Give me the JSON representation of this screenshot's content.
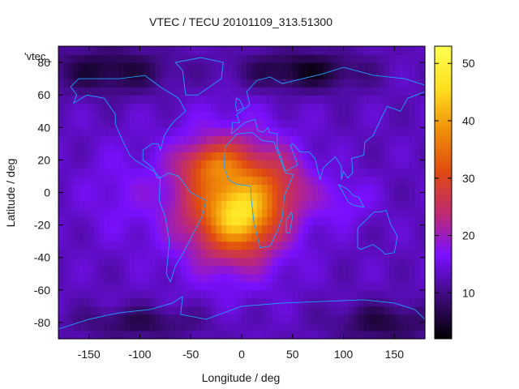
{
  "chart_data": {
    "type": "heatmap",
    "title": "VTEC / TECU 20101109_313.51300",
    "xlabel": "Longitude / deg",
    "ylabel": "Latitude / deg",
    "key_label": "'vtec_",
    "xlim": [
      -180,
      180
    ],
    "ylim": [
      -90,
      90
    ],
    "xticks": [
      -150,
      -100,
      -50,
      0,
      50,
      100,
      150
    ],
    "yticks": [
      -80,
      -60,
      -40,
      -20,
      0,
      20,
      40,
      60,
      80
    ],
    "colorbar": {
      "min": 2,
      "max": 53,
      "ticks": [
        10,
        20,
        30,
        40,
        50
      ]
    },
    "palette": [
      "#000000",
      "#3d0a7a",
      "#7a10ff",
      "#c02a70",
      "#e04a10",
      "#f09008",
      "#ffe020",
      "#ffff50"
    ],
    "coastline_color": "#1ea0ff",
    "field": {
      "background_value": 13,
      "anomalies": [
        {
          "lon": -10,
          "lat": -5,
          "r_lon": 55,
          "r_lat": 38,
          "amp": 22
        },
        {
          "lon": 0,
          "lat": -15,
          "r_lon": 30,
          "r_lat": 20,
          "amp": 14
        },
        {
          "lon": -30,
          "lat": 18,
          "r_lon": 30,
          "r_lat": 12,
          "amp": 9
        },
        {
          "lon": 40,
          "lat": 5,
          "r_lon": 30,
          "r_lat": 20,
          "amp": 6
        },
        {
          "lon": 100,
          "lat": -5,
          "r_lon": 30,
          "r_lat": 15,
          "amp": 4
        },
        {
          "lon": -120,
          "lat": 0,
          "r_lon": 40,
          "r_lat": 30,
          "amp": 3
        },
        {
          "lon": 60,
          "lat": 75,
          "r_lon": 60,
          "r_lat": 12,
          "amp": -9
        },
        {
          "lon": -130,
          "lat": 75,
          "r_lon": 60,
          "r_lat": 14,
          "amp": -8
        },
        {
          "lon": 140,
          "lat": -80,
          "r_lon": 50,
          "r_lat": 12,
          "amp": -7
        },
        {
          "lon": -100,
          "lat": -80,
          "r_lon": 60,
          "r_lat": 10,
          "amp": -6
        }
      ]
    }
  }
}
